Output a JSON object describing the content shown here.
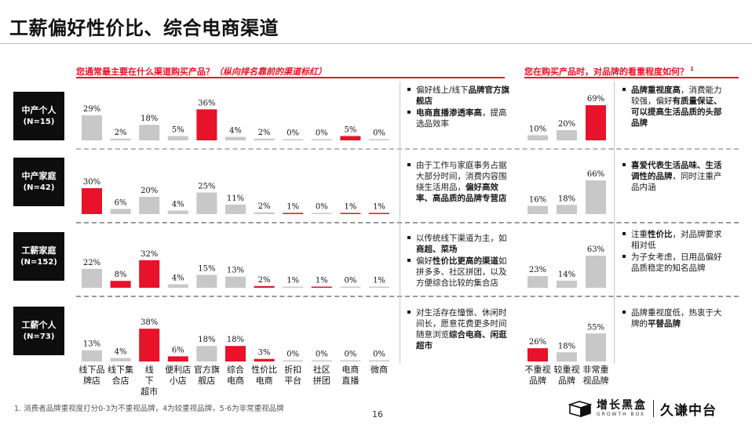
{
  "page": {
    "title": "工薪偏好性价比、综合电商渠道",
    "footnote": "1. 消费者品牌重视度打分0-3为不重视品牌，4为较重视品牌，5-6为非常重视品牌",
    "page_number": "16"
  },
  "questions": {
    "left_main": "您通常最主要在什么渠道购买产品？",
    "left_note": "（纵向排名靠前的渠道标红）",
    "right_main": "您在购买产品时，对品牌的看重程度如何？",
    "right_sup": "1"
  },
  "logo": {
    "growth_box_cn": "增长黑盒",
    "growth_box_en": "GROWTH BOX",
    "partner": "久谦中台"
  },
  "colors": {
    "accent": "#e8122a",
    "bar": "#c8c8c8",
    "dark": "#0d0d0d"
  },
  "segments": [
    {
      "name": "中产个人",
      "n": "(N=15)",
      "comments": [
        [
          {
            "t": "偏好线上/线下"
          },
          {
            "t": "品牌官方旗舰店",
            "b": true
          }
        ],
        [
          {
            "t": "电商直播渗透率高",
            "b": true
          },
          {
            "t": "，提高选品效率"
          }
        ]
      ]
    },
    {
      "name": "中产家庭",
      "n": "(N=42)",
      "comments": [
        [
          {
            "t": "由于工作与家庭事务占据大部分时间，消费内容围绕生活用品，"
          },
          {
            "t": "偏好高效率、高品质的品牌专营店",
            "b": true
          }
        ]
      ]
    },
    {
      "name": "工薪家庭",
      "n": "(N=152)",
      "comments": [
        [
          {
            "t": "以传统线下渠道为主，如"
          },
          {
            "t": "商超、菜场",
            "b": true
          }
        ],
        [
          {
            "t": "偏好"
          },
          {
            "t": "性价比更高的渠道",
            "b": true
          },
          {
            "t": "如拼多多、社区拼团，以及方便综合比较的集合店"
          }
        ]
      ]
    },
    {
      "name": "工薪个人",
      "n": "(N=73)",
      "comments": [
        [
          {
            "t": "对生活存在憧憬、休闲时间长，愿意花费更多时间随意浏览"
          },
          {
            "t": "综合电商、闲逛超市",
            "b": true
          }
        ]
      ]
    }
  ],
  "right_comments": [
    [
      [
        {
          "t": "品牌重视度高",
          "b": true
        },
        {
          "t": "，消费能力较强，偏好"
        },
        {
          "t": "有质量保证、可以提高生活品质的头部品牌",
          "b": true
        }
      ]
    ],
    [
      [
        {
          "t": "喜爱代表生活品味、生活调性的品牌",
          "b": true
        },
        {
          "t": "，同时注重产品内涵"
        }
      ]
    ],
    [
      [
        {
          "t": "注重"
        },
        {
          "t": "性价比",
          "b": true
        },
        {
          "t": "，对品牌要求相对低"
        }
      ],
      [
        {
          "t": "为子女考虑，日用品偏好品质稳定的知名品牌"
        }
      ]
    ],
    [
      [
        {
          "t": "品牌重视度低，热衷于大牌的"
        },
        {
          "t": "平替品牌",
          "b": true
        }
      ]
    ]
  ],
  "chart_data": [
    {
      "type": "bar",
      "title": "您通常最主要在什么渠道购买产品？",
      "unit": "%",
      "categories": [
        "线下品牌店",
        "线下集合店",
        "线下超市",
        "便利店小店",
        "官方旗舰店",
        "综合电商",
        "性价比电商",
        "折扣平台",
        "社区拼团",
        "电商直播",
        "微商"
      ],
      "category_labels": [
        [
          "线下品",
          "牌店"
        ],
        [
          "线下集",
          "合店"
        ],
        [
          "线",
          "下",
          "超市"
        ],
        [
          "便利店",
          "小店"
        ],
        [
          "官方旗",
          "舰店"
        ],
        [
          "综合",
          "电商"
        ],
        [
          "性价比",
          "电商"
        ],
        [
          "折扣",
          "平台"
        ],
        [
          "社区",
          "拼团"
        ],
        [
          "电商",
          "直播"
        ],
        [
          "微商"
        ]
      ],
      "series": [
        {
          "name": "中产个人",
          "values": [
            29,
            2,
            18,
            5,
            36,
            4,
            2,
            0,
            0,
            5,
            0
          ],
          "highlight": [
            4,
            9
          ]
        },
        {
          "name": "中产家庭",
          "values": [
            30,
            6,
            20,
            4,
            25,
            11,
            2,
            1,
            0,
            1,
            1
          ],
          "highlight": [
            0,
            7,
            9,
            10
          ]
        },
        {
          "name": "工薪家庭",
          "values": [
            22,
            8,
            32,
            4,
            15,
            13,
            2,
            1,
            1,
            0,
            1
          ],
          "highlight": [
            1,
            2,
            6,
            8
          ]
        },
        {
          "name": "工薪个人",
          "values": [
            13,
            4,
            38,
            6,
            18,
            18,
            3,
            0,
            0,
            0,
            0
          ],
          "highlight": [
            2,
            3,
            5,
            6
          ]
        }
      ]
    },
    {
      "type": "bar",
      "title": "您在购买产品时，对品牌的看重程度如何？",
      "unit": "%",
      "categories": [
        "不重视品牌",
        "较重视品牌",
        "非常重视品牌"
      ],
      "category_labels": [
        [
          "不重视",
          "品牌"
        ],
        [
          "较重视",
          "品牌"
        ],
        [
          "非常重",
          "视品牌"
        ]
      ],
      "series": [
        {
          "name": "中产个人",
          "values": [
            10,
            20,
            69
          ],
          "highlight": [
            2
          ]
        },
        {
          "name": "中产家庭",
          "values": [
            16,
            18,
            66
          ],
          "highlight": []
        },
        {
          "name": "工薪家庭",
          "values": [
            23,
            14,
            63
          ],
          "highlight": []
        },
        {
          "name": "工薪个人",
          "values": [
            26,
            18,
            55
          ],
          "highlight": [
            0
          ]
        }
      ]
    }
  ]
}
